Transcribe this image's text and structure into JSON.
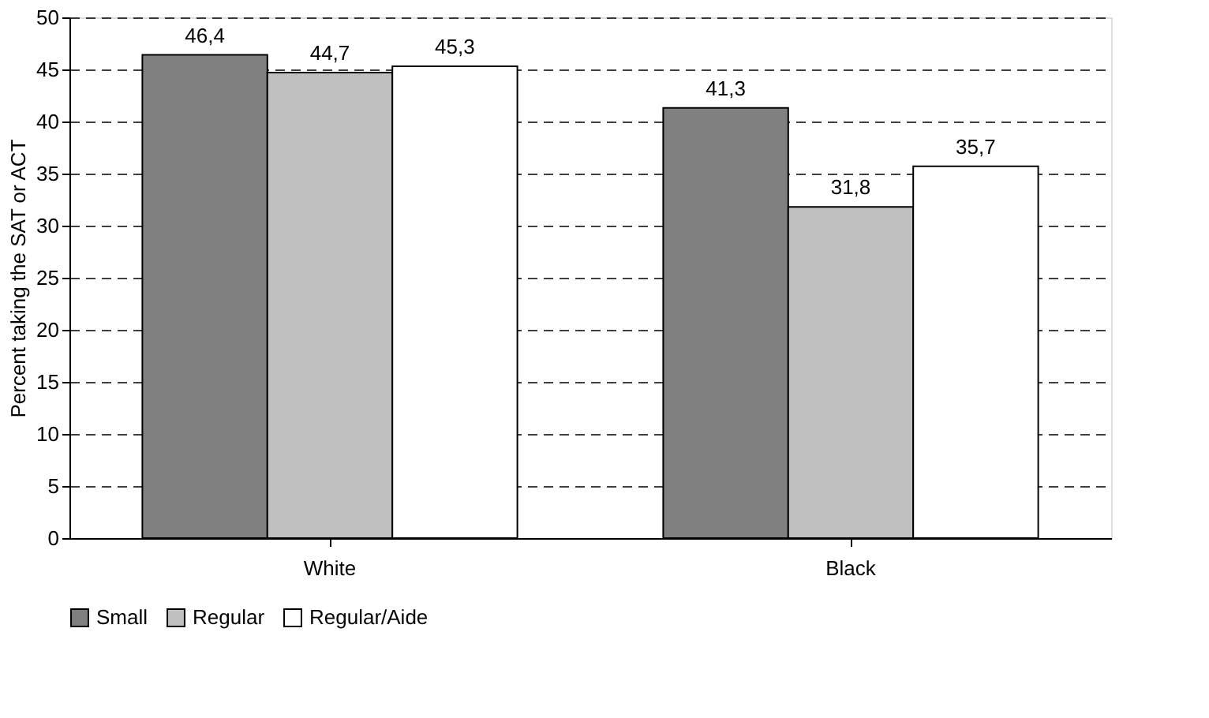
{
  "chart_data": {
    "type": "bar",
    "ylabel": "Percent taking the SAT or ACT",
    "categories": [
      "White",
      "Black"
    ],
    "series": [
      {
        "name": "Small",
        "color": "#808080",
        "values": [
          46.4,
          41.3
        ],
        "value_labels": [
          "46,4",
          "41,3"
        ]
      },
      {
        "name": "Regular",
        "color": "#c0c0c0",
        "values": [
          44.7,
          31.8
        ],
        "value_labels": [
          "44,7",
          "31,8"
        ]
      },
      {
        "name": "Regular/Aide",
        "color": "#ffffff",
        "values": [
          45.3,
          35.7
        ],
        "value_labels": [
          "45,3",
          "35,7"
        ]
      }
    ],
    "ylim": [
      0,
      50
    ],
    "yticks": [
      0,
      5,
      10,
      15,
      20,
      25,
      30,
      35,
      40,
      45,
      50
    ],
    "grid": "y",
    "legend": "bottom"
  }
}
